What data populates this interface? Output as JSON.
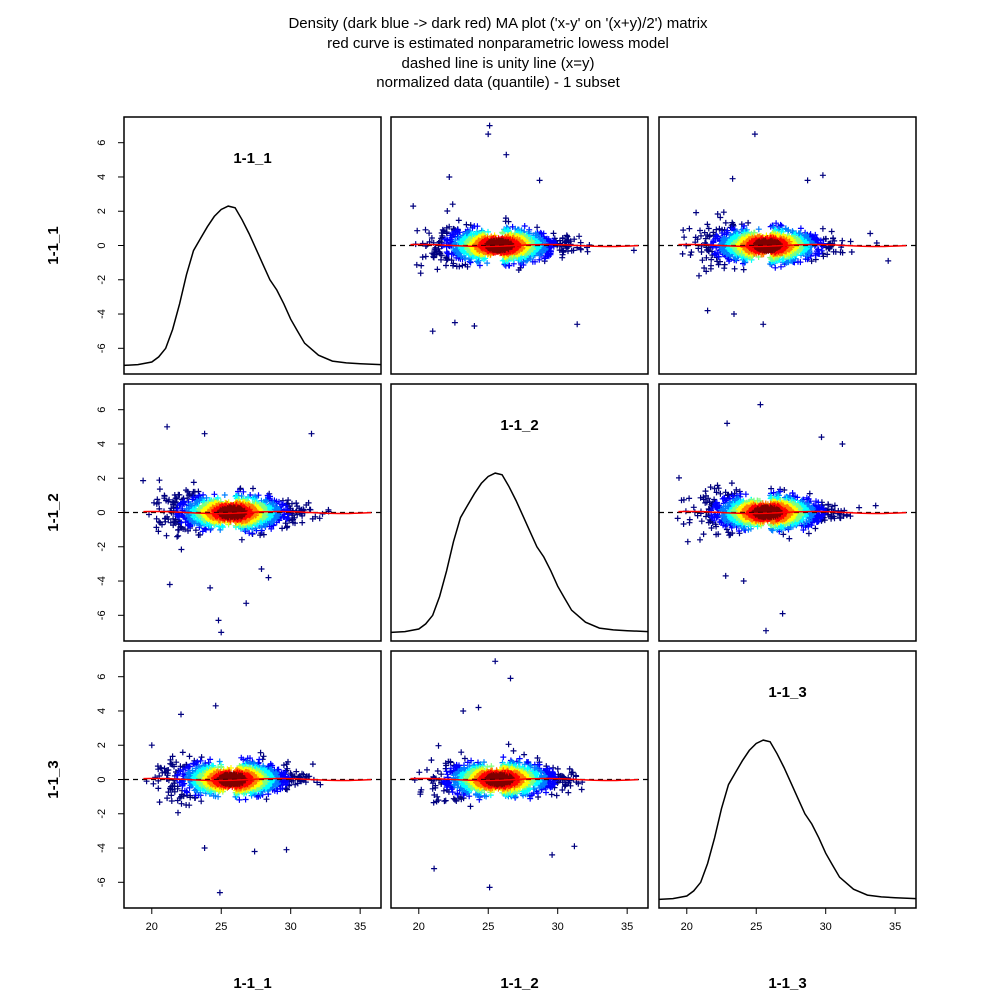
{
  "title_lines": [
    "Density (dark blue -> dark red) MA plot ('x-y' on '(x+y)/2') matrix",
    "red curve is estimated nonparametric lowess model",
    "dashed line is unity line (x=y)",
    "normalized data (quantile) - 1 subset"
  ],
  "chart_data": {
    "type": "scatter",
    "subtype": "MA plot matrix",
    "variables": [
      "1-1_1",
      "1-1_2",
      "1-1_3"
    ],
    "x_axis": {
      "range": [
        18,
        36.5
      ],
      "ticks": [
        20,
        25,
        30,
        35
      ]
    },
    "y_axis": {
      "range": [
        -7.5,
        7.5
      ],
      "ticks": [
        -6,
        -4,
        -2,
        0,
        2,
        4,
        6
      ]
    },
    "density_colors": [
      "#00007f",
      "#0000ff",
      "#007fff",
      "#00ffff",
      "#7fff7f",
      "#ffff00",
      "#ff7f00",
      "#ff0000",
      "#7f0000"
    ],
    "point_marker": "+",
    "lowess_color": "#ff0000",
    "unity_line": {
      "y": 0,
      "style": "dashed"
    },
    "density_curve": {
      "x": [
        18,
        19,
        20,
        20.5,
        21,
        21.5,
        22,
        22.5,
        23,
        23.5,
        24,
        24.5,
        25,
        25.5,
        26,
        26.5,
        27,
        27.5,
        28,
        28.5,
        29,
        29.5,
        30,
        30.5,
        31,
        32,
        33,
        34,
        35,
        36.5
      ],
      "y": [
        -7.0,
        -6.95,
        -6.8,
        -6.5,
        -6.0,
        -4.9,
        -3.4,
        -1.7,
        -0.3,
        0.4,
        1.1,
        1.7,
        2.1,
        2.3,
        2.2,
        1.5,
        0.7,
        -0.2,
        -1.1,
        -2.0,
        -2.6,
        -3.4,
        -4.3,
        -5.0,
        -5.7,
        -6.4,
        -6.75,
        -6.85,
        -6.9,
        -6.95
      ]
    },
    "panels": [
      {
        "row": 0,
        "col": 0,
        "kind": "density",
        "label": "1-1_1"
      },
      {
        "row": 0,
        "col": 1,
        "kind": "scatter",
        "seed": 11,
        "outliers": [
          [
            25.1,
            7.0
          ],
          [
            25.0,
            6.5
          ],
          [
            26.3,
            5.3
          ],
          [
            28.7,
            3.8
          ],
          [
            31.4,
            -4.6
          ],
          [
            21.0,
            -5.0
          ],
          [
            22.6,
            -4.5
          ],
          [
            24.0,
            -4.7
          ],
          [
            19.6,
            2.3
          ],
          [
            22.2,
            4.0
          ]
        ]
      },
      {
        "row": 0,
        "col": 2,
        "kind": "scatter",
        "seed": 13,
        "outliers": [
          [
            24.9,
            6.5
          ],
          [
            29.8,
            4.1
          ],
          [
            28.7,
            3.8
          ],
          [
            23.3,
            3.9
          ],
          [
            25.5,
            -4.6
          ],
          [
            21.5,
            -3.8
          ],
          [
            23.4,
            -4.0
          ],
          [
            33.2,
            0.7
          ],
          [
            34.5,
            -0.9
          ]
        ]
      },
      {
        "row": 1,
        "col": 0,
        "kind": "scatter",
        "seed": 17,
        "outliers": [
          [
            24.8,
            -6.3
          ],
          [
            25.0,
            -7.0
          ],
          [
            31.5,
            4.6
          ],
          [
            21.1,
            5.0
          ],
          [
            23.8,
            4.6
          ],
          [
            24.2,
            -4.4
          ],
          [
            26.8,
            -5.3
          ],
          [
            28.4,
            -3.8
          ],
          [
            27.9,
            -3.3
          ],
          [
            21.3,
            -4.2
          ]
        ]
      },
      {
        "row": 1,
        "col": 1,
        "kind": "density",
        "label": "1-1_2"
      },
      {
        "row": 1,
        "col": 2,
        "kind": "scatter",
        "seed": 19,
        "outliers": [
          [
            25.3,
            6.3
          ],
          [
            22.9,
            5.2
          ],
          [
            29.7,
            4.4
          ],
          [
            31.2,
            4.0
          ],
          [
            25.7,
            -6.9
          ],
          [
            26.9,
            -5.9
          ],
          [
            24.1,
            -4.0
          ],
          [
            22.8,
            -3.7
          ],
          [
            33.6,
            0.4
          ]
        ]
      },
      {
        "row": 2,
        "col": 0,
        "kind": "scatter",
        "seed": 23,
        "outliers": [
          [
            24.9,
            -6.6
          ],
          [
            24.6,
            4.3
          ],
          [
            22.1,
            3.8
          ],
          [
            29.7,
            -4.1
          ],
          [
            27.4,
            -4.2
          ],
          [
            23.8,
            -4.0
          ],
          [
            20.0,
            2.0
          ],
          [
            31.6,
            0.9
          ]
        ]
      },
      {
        "row": 2,
        "col": 1,
        "kind": "scatter",
        "seed": 29,
        "outliers": [
          [
            25.5,
            6.9
          ],
          [
            26.6,
            5.9
          ],
          [
            25.1,
            -6.3
          ],
          [
            21.1,
            -5.2
          ],
          [
            31.2,
            -3.9
          ],
          [
            29.6,
            -4.4
          ],
          [
            23.2,
            4.0
          ],
          [
            24.3,
            4.2
          ]
        ]
      },
      {
        "row": 2,
        "col": 2,
        "kind": "density",
        "label": "1-1_3"
      }
    ]
  }
}
